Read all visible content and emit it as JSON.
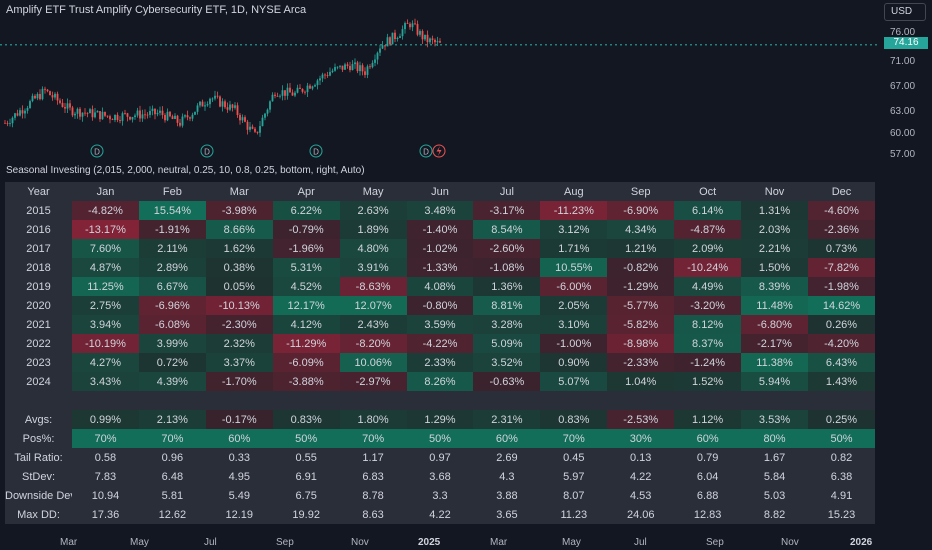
{
  "chart": {
    "title": "Amplify ETF Trust Amplify Cybersecurity ETF, 1D, NYSE Arca",
    "currency": "USD",
    "last_price": "74.16",
    "price_labels": [
      "76.00",
      "71.00",
      "67.00",
      "63.00",
      "60.00",
      "57.00"
    ],
    "time_labels": [
      "Mar",
      "May",
      "Jul",
      "Sep",
      "Nov",
      "2025",
      "Mar",
      "May",
      "Jul",
      "Sep",
      "Nov",
      "2026"
    ],
    "event_markers": [
      "D",
      "D",
      "D",
      "D"
    ],
    "colors": {
      "up": "#26a69a",
      "down": "#ef5350"
    }
  },
  "indicator": {
    "title": "Seasonal Investing (2,015, 2,000, neutral, 0.25, 10, 0.8, 0.25, bottom, right, Auto)"
  },
  "table": {
    "header": [
      "Year",
      "Jan",
      "Feb",
      "Mar",
      "Apr",
      "May",
      "Jun",
      "Jul",
      "Aug",
      "Sep",
      "Oct",
      "Nov",
      "Dec"
    ],
    "years": [
      {
        "year": "2015",
        "values": [
          "-4.82%",
          "15.54%",
          "-3.98%",
          "6.22%",
          "2.63%",
          "3.48%",
          "-3.17%",
          "-11.23%",
          "-6.90%",
          "6.14%",
          "1.31%",
          "-4.60%"
        ]
      },
      {
        "year": "2016",
        "values": [
          "-13.17%",
          "-1.91%",
          "8.66%",
          "-0.79%",
          "1.89%",
          "-1.40%",
          "8.54%",
          "3.12%",
          "4.34%",
          "-4.87%",
          "2.03%",
          "-2.36%"
        ]
      },
      {
        "year": "2017",
        "values": [
          "7.60%",
          "2.11%",
          "1.62%",
          "-1.96%",
          "4.80%",
          "-1.02%",
          "-2.60%",
          "1.71%",
          "1.21%",
          "2.09%",
          "2.21%",
          "0.73%"
        ]
      },
      {
        "year": "2018",
        "values": [
          "4.87%",
          "2.89%",
          "0.38%",
          "5.31%",
          "3.91%",
          "-1.33%",
          "-1.08%",
          "10.55%",
          "-0.82%",
          "-10.24%",
          "1.50%",
          "-7.82%"
        ]
      },
      {
        "year": "2019",
        "values": [
          "11.25%",
          "6.67%",
          "0.05%",
          "4.52%",
          "-8.63%",
          "4.08%",
          "1.36%",
          "-6.00%",
          "-1.29%",
          "4.49%",
          "8.39%",
          "-1.98%"
        ]
      },
      {
        "year": "2020",
        "values": [
          "2.75%",
          "-6.96%",
          "-10.13%",
          "12.17%",
          "12.07%",
          "-0.80%",
          "8.81%",
          "2.05%",
          "-5.77%",
          "-3.20%",
          "11.48%",
          "14.62%"
        ]
      },
      {
        "year": "2021",
        "values": [
          "3.94%",
          "-6.08%",
          "-2.30%",
          "4.12%",
          "2.43%",
          "3.59%",
          "3.28%",
          "3.10%",
          "-5.82%",
          "8.12%",
          "-6.80%",
          "0.26%"
        ]
      },
      {
        "year": "2022",
        "values": [
          "-10.19%",
          "3.99%",
          "2.32%",
          "-11.29%",
          "-8.20%",
          "-4.22%",
          "5.09%",
          "-1.00%",
          "-8.98%",
          "8.37%",
          "-2.17%",
          "-4.20%"
        ]
      },
      {
        "year": "2023",
        "values": [
          "4.27%",
          "0.72%",
          "3.37%",
          "-6.09%",
          "10.06%",
          "2.33%",
          "3.52%",
          "0.90%",
          "-2.33%",
          "-1.24%",
          "11.38%",
          "6.43%"
        ]
      },
      {
        "year": "2024",
        "values": [
          "3.43%",
          "4.39%",
          "-1.70%",
          "-3.88%",
          "-2.97%",
          "8.26%",
          "-0.63%",
          "5.07%",
          "1.04%",
          "1.52%",
          "5.94%",
          "1.43%"
        ]
      }
    ],
    "stats": [
      {
        "label": "Avgs:",
        "values": [
          "0.99%",
          "2.13%",
          "-0.17%",
          "0.83%",
          "1.80%",
          "1.29%",
          "2.31%",
          "0.83%",
          "-2.53%",
          "1.12%",
          "3.53%",
          "0.25%"
        ]
      },
      {
        "label": "Pos%:",
        "values": [
          "70%",
          "70%",
          "60%",
          "50%",
          "70%",
          "50%",
          "60%",
          "70%",
          "30%",
          "60%",
          "80%",
          "50%"
        ]
      },
      {
        "label": "Tail Ratio:",
        "values": [
          "0.58",
          "0.96",
          "0.33",
          "0.55",
          "1.17",
          "0.97",
          "2.69",
          "0.45",
          "0.13",
          "0.79",
          "1.67",
          "0.82"
        ]
      },
      {
        "label": "StDev:",
        "values": [
          "7.83",
          "6.48",
          "4.95",
          "6.91",
          "6.83",
          "3.68",
          "4.3",
          "5.97",
          "4.22",
          "6.04",
          "5.84",
          "6.38"
        ]
      },
      {
        "label": "Downside Dev",
        "values": [
          "10.94",
          "5.81",
          "5.49",
          "6.75",
          "8.78",
          "3.3",
          "3.88",
          "8.07",
          "4.53",
          "6.88",
          "5.03",
          "4.91"
        ]
      },
      {
        "label": "Max DD:",
        "values": [
          "17.36",
          "12.62",
          "12.19",
          "19.92",
          "8.63",
          "4.22",
          "3.65",
          "11.23",
          "24.06",
          "12.83",
          "8.82",
          "15.23"
        ]
      }
    ]
  }
}
